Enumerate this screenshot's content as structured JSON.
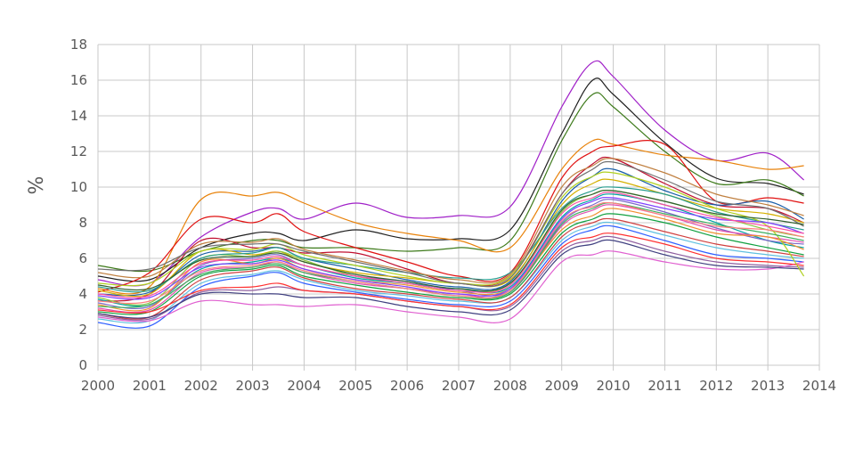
{
  "chart_data": {
    "type": "line",
    "title": "",
    "xlabel": "",
    "ylabel": "%",
    "xlim": [
      2000,
      2014
    ],
    "ylim": [
      0,
      18
    ],
    "x_ticks": [
      "2000",
      "2001",
      "2002",
      "2003",
      "2004",
      "2005",
      "2006",
      "2007",
      "2008",
      "2009",
      "2010",
      "2011",
      "2012",
      "2013",
      "2014"
    ],
    "y_ticks": [
      "0",
      "2",
      "4",
      "6",
      "8",
      "10",
      "12",
      "14",
      "16",
      "18"
    ],
    "grid": true,
    "legend": "none",
    "x": [
      2000,
      2001,
      2002,
      2003,
      2003.5,
      2004,
      2005,
      2006,
      2007,
      2008,
      2009,
      2009.6,
      2010,
      2011,
      2012,
      2013,
      2013.7
    ],
    "series": [
      {
        "color": "#a020c8",
        "values": [
          4.8,
          4.6,
          7.2,
          8.6,
          8.8,
          8.2,
          9.1,
          8.3,
          8.4,
          8.9,
          14.5,
          17.0,
          16.2,
          13.2,
          11.5,
          11.9,
          10.4
        ]
      },
      {
        "color": "#202020",
        "values": [
          5.0,
          4.8,
          6.6,
          7.4,
          7.4,
          7.0,
          7.6,
          7.1,
          7.1,
          7.6,
          13.0,
          16.0,
          15.2,
          12.5,
          10.5,
          10.2,
          9.6
        ]
      },
      {
        "color": "#3d7a1a",
        "values": [
          5.6,
          5.3,
          6.4,
          7.0,
          7.0,
          6.6,
          6.6,
          6.4,
          6.6,
          7.0,
          12.6,
          15.2,
          14.5,
          12.0,
          10.2,
          10.4,
          9.5
        ]
      },
      {
        "color": "#e8820a",
        "values": [
          4.3,
          4.4,
          9.3,
          9.5,
          9.7,
          9.1,
          8.0,
          7.4,
          7.0,
          6.6,
          11.0,
          12.6,
          12.4,
          11.8,
          11.5,
          11.0,
          11.2
        ]
      },
      {
        "color": "#e01010",
        "values": [
          4.1,
          5.2,
          8.2,
          8.0,
          8.5,
          7.5,
          6.6,
          5.8,
          5.0,
          5.2,
          10.5,
          12.0,
          12.3,
          12.4,
          9.2,
          9.4,
          9.1
        ]
      },
      {
        "color": "#c01030",
        "values": [
          3.6,
          4.0,
          7.0,
          6.6,
          6.6,
          6.3,
          6.3,
          5.4,
          4.6,
          5.0,
          9.6,
          11.3,
          11.6,
          10.2,
          9.0,
          8.8,
          8.0
        ]
      },
      {
        "color": "#1a5fa8",
        "values": [
          4.0,
          4.1,
          6.2,
          6.4,
          6.6,
          6.0,
          5.4,
          4.8,
          4.4,
          4.7,
          9.2,
          10.6,
          11.0,
          9.8,
          9.0,
          9.2,
          8.2
        ]
      },
      {
        "color": "#d4b000",
        "values": [
          4.2,
          4.0,
          6.4,
          6.2,
          6.4,
          5.8,
          5.2,
          4.9,
          4.6,
          4.8,
          9.0,
          10.2,
          10.4,
          9.6,
          8.8,
          8.5,
          8.0
        ]
      },
      {
        "color": "#8cc63f",
        "values": [
          3.8,
          3.5,
          6.0,
          6.1,
          6.4,
          5.9,
          5.0,
          4.6,
          4.2,
          4.6,
          8.6,
          9.6,
          9.8,
          9.2,
          8.4,
          7.6,
          7.2
        ]
      },
      {
        "color": "#00a3a3",
        "values": [
          3.7,
          3.4,
          5.4,
          5.8,
          6.0,
          5.6,
          4.9,
          4.6,
          4.3,
          4.4,
          8.3,
          9.3,
          9.6,
          9.0,
          8.0,
          7.0,
          6.6
        ]
      },
      {
        "color": "#7b68c8",
        "values": [
          3.5,
          3.3,
          5.6,
          6.0,
          6.2,
          5.6,
          5.0,
          4.7,
          4.2,
          4.2,
          8.0,
          9.0,
          9.3,
          8.6,
          7.7,
          7.0,
          6.8
        ]
      },
      {
        "color": "#e04fb0",
        "values": [
          3.2,
          3.1,
          5.2,
          5.5,
          5.8,
          5.2,
          4.6,
          4.3,
          4.0,
          4.1,
          7.8,
          8.7,
          9.0,
          8.4,
          7.6,
          7.2,
          6.9
        ]
      },
      {
        "color": "#f09030",
        "values": [
          3.4,
          3.2,
          5.8,
          5.7,
          6.0,
          5.4,
          4.8,
          4.5,
          4.1,
          4.3,
          7.6,
          8.4,
          8.8,
          8.2,
          7.4,
          7.2,
          6.5
        ]
      },
      {
        "color": "#10a040",
        "values": [
          3.0,
          3.0,
          5.0,
          5.4,
          5.6,
          5.0,
          4.5,
          4.1,
          3.8,
          4.0,
          7.4,
          8.2,
          8.5,
          8.0,
          7.2,
          6.6,
          6.2
        ]
      },
      {
        "color": "#3060ff",
        "values": [
          2.4,
          2.2,
          4.4,
          5.0,
          5.2,
          4.6,
          4.1,
          3.7,
          3.4,
          3.6,
          6.8,
          7.6,
          7.8,
          7.0,
          6.2,
          6.0,
          5.8
        ]
      },
      {
        "color": "#60c0e0",
        "values": [
          2.6,
          2.5,
          4.6,
          5.1,
          5.3,
          4.8,
          4.2,
          3.9,
          3.6,
          3.8,
          7.0,
          7.8,
          8.0,
          7.3,
          6.6,
          6.2,
          6.0
        ]
      },
      {
        "color": "#d04040",
        "values": [
          2.9,
          2.7,
          4.8,
          5.3,
          5.5,
          4.9,
          4.3,
          4.0,
          3.7,
          3.8,
          7.2,
          8.0,
          8.2,
          7.5,
          6.8,
          6.4,
          6.1
        ]
      },
      {
        "color": "#9060a0",
        "values": [
          2.8,
          2.6,
          4.1,
          4.2,
          4.4,
          4.2,
          4.0,
          3.6,
          3.3,
          3.3,
          6.4,
          7.0,
          7.2,
          6.4,
          5.8,
          5.6,
          5.5
        ]
      },
      {
        "color": "#e060d0",
        "values": [
          2.7,
          2.5,
          3.6,
          3.4,
          3.4,
          3.3,
          3.4,
          3.0,
          2.7,
          2.6,
          5.8,
          6.2,
          6.4,
          5.8,
          5.4,
          5.4,
          5.8
        ]
      },
      {
        "color": "#404080",
        "values": [
          2.9,
          2.7,
          4.0,
          4.0,
          4.0,
          3.8,
          3.8,
          3.3,
          3.0,
          3.1,
          6.2,
          6.8,
          7.0,
          6.2,
          5.6,
          5.5,
          5.4
        ]
      },
      {
        "color": "#ff3030",
        "values": [
          3.1,
          3.0,
          4.2,
          4.4,
          4.6,
          4.2,
          4.0,
          3.6,
          3.3,
          3.4,
          6.6,
          7.2,
          7.4,
          6.8,
          6.0,
          5.8,
          5.6
        ]
      },
      {
        "color": "#2a9d8f",
        "values": [
          4.4,
          4.2,
          6.0,
          6.3,
          6.6,
          6.0,
          5.6,
          5.2,
          4.9,
          5.2,
          8.8,
          9.8,
          10.0,
          9.6,
          8.6,
          8.0,
          7.6
        ]
      },
      {
        "color": "#b0d020",
        "values": [
          4.6,
          4.6,
          6.4,
          6.5,
          6.8,
          6.2,
          5.6,
          5.0,
          4.6,
          5.0,
          9.4,
          10.6,
          10.8,
          10.0,
          8.8,
          7.8,
          5.0
        ]
      },
      {
        "color": "#c08040",
        "values": [
          5.2,
          5.0,
          6.8,
          6.9,
          7.1,
          6.5,
          5.9,
          5.3,
          4.8,
          5.1,
          10.0,
          11.2,
          11.6,
          10.8,
          9.6,
          9.0,
          8.4
        ]
      },
      {
        "color": "#8040ff",
        "values": [
          3.9,
          3.8,
          5.5,
          5.7,
          5.9,
          5.4,
          4.8,
          4.4,
          4.0,
          4.3,
          8.2,
          9.2,
          9.4,
          8.8,
          8.2,
          8.0,
          7.4
        ]
      },
      {
        "color": "#40b060",
        "values": [
          3.3,
          3.4,
          5.1,
          5.5,
          5.7,
          5.2,
          4.7,
          4.3,
          3.9,
          4.1,
          7.9,
          8.8,
          9.1,
          8.5,
          7.9,
          7.4,
          7.0
        ]
      },
      {
        "color": "#707070",
        "values": [
          5.4,
          5.4,
          6.6,
          6.8,
          6.8,
          6.4,
          5.8,
          5.2,
          4.6,
          4.9,
          9.6,
          11.0,
          11.4,
          10.4,
          9.2,
          8.8,
          7.8
        ]
      },
      {
        "color": "#ff8080",
        "values": [
          3.6,
          3.6,
          5.3,
          5.6,
          5.8,
          5.3,
          4.7,
          4.3,
          3.9,
          4.2,
          8.1,
          8.9,
          9.1,
          8.4,
          7.8,
          7.6,
          7.2
        ]
      },
      {
        "color": "#306030",
        "values": [
          4.5,
          4.3,
          5.9,
          6.1,
          6.3,
          5.8,
          5.1,
          4.7,
          4.3,
          4.6,
          8.7,
          9.6,
          9.8,
          9.2,
          8.5,
          8.2,
          7.9
        ]
      },
      {
        "color": "#ff50a0",
        "values": [
          4.0,
          3.9,
          5.7,
          5.9,
          6.1,
          5.6,
          5.0,
          4.6,
          4.2,
          4.5,
          8.5,
          9.4,
          9.7,
          9.0,
          8.3,
          7.8,
          7.4
        ]
      }
    ]
  }
}
